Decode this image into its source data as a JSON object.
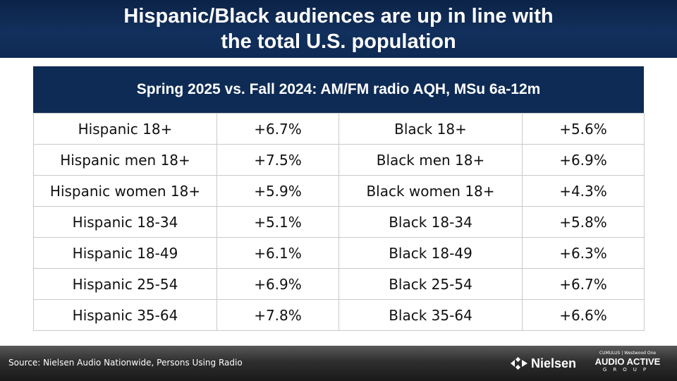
{
  "title": {
    "line1": "Hispanic/Black audiences are up in line with",
    "line2": "the total U.S. population"
  },
  "table": {
    "header": "Spring 2025 vs. Fall 2024:  AM/FM radio AQH, MSu 6a-12m",
    "rows": [
      {
        "label_a": "Hispanic 18+",
        "value_a": "+6.7%",
        "label_b": "Black 18+",
        "value_b": "+5.6%"
      },
      {
        "label_a": "Hispanic men 18+",
        "value_a": "+7.5%",
        "label_b": "Black men 18+",
        "value_b": "+6.9%"
      },
      {
        "label_a": "Hispanic women 18+",
        "value_a": "+5.9%",
        "label_b": "Black women 18+",
        "value_b": "+4.3%"
      },
      {
        "label_a": "Hispanic 18-34",
        "value_a": "+5.1%",
        "label_b": "Black 18-34",
        "value_b": "+5.8%"
      },
      {
        "label_a": "Hispanic 18-49",
        "value_a": "+6.1%",
        "label_b": "Black 18-49",
        "value_b": "+6.3%"
      },
      {
        "label_a": "Hispanic 25-54",
        "value_a": "+6.9%",
        "label_b": "Black 25-54",
        "value_b": "+6.7%"
      },
      {
        "label_a": "Hispanic 35-64",
        "value_a": "+7.8%",
        "label_b": "Black 35-64",
        "value_b": "+6.6%"
      }
    ]
  },
  "footer": {
    "source": "Source:  Nielsen Audio Nationwide, Persons Using Radio",
    "nielsen_logo": "Nielsen",
    "aag_top": "CUMULUS | Westwood One",
    "aag_main": "AUDIO ACTIVE",
    "aag_group": "GROUP"
  },
  "colors": {
    "title_bar": "#12305d",
    "table_header": "#0e2b55",
    "footer": "#2e2e2e"
  }
}
